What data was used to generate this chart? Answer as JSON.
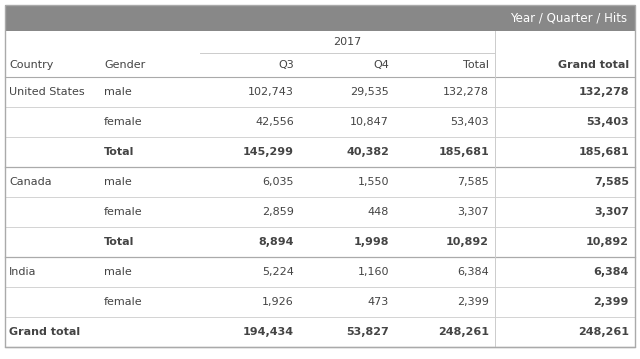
{
  "title_header": "Year / Quarter / Hits",
  "year_label": "2017",
  "col_headers": [
    "Country",
    "Gender",
    "Q3",
    "Q4",
    "Total",
    "Grand total"
  ],
  "rows": [
    {
      "country": "United States",
      "gender": "male",
      "q3": "102,743",
      "q4": "29,535",
      "total": "132,278",
      "grand": "132,278",
      "bold": false
    },
    {
      "country": "",
      "gender": "female",
      "q3": "42,556",
      "q4": "10,847",
      "total": "53,403",
      "grand": "53,403",
      "bold": false
    },
    {
      "country": "",
      "gender": "Total",
      "q3": "145,299",
      "q4": "40,382",
      "total": "185,681",
      "grand": "185,681",
      "bold": true
    },
    {
      "country": "Canada",
      "gender": "male",
      "q3": "6,035",
      "q4": "1,550",
      "total": "7,585",
      "grand": "7,585",
      "bold": false
    },
    {
      "country": "",
      "gender": "female",
      "q3": "2,859",
      "q4": "448",
      "total": "3,307",
      "grand": "3,307",
      "bold": false
    },
    {
      "country": "",
      "gender": "Total",
      "q3": "8,894",
      "q4": "1,998",
      "total": "10,892",
      "grand": "10,892",
      "bold": true
    },
    {
      "country": "India",
      "gender": "male",
      "q3": "5,224",
      "q4": "1,160",
      "total": "6,384",
      "grand": "6,384",
      "bold": false
    },
    {
      "country": "",
      "gender": "female",
      "q3": "1,926",
      "q4": "473",
      "total": "2,399",
      "grand": "2,399",
      "bold": false
    }
  ],
  "grand_total_row": {
    "label": "Grand total",
    "q3": "194,434",
    "q4": "53,827",
    "total": "248,261",
    "grand": "248,261"
  },
  "header_bg": "#888888",
  "header_fg": "#ffffff",
  "row_bg": "#ffffff",
  "border_color": "#cccccc",
  "thick_border_color": "#aaaaaa",
  "text_color": "#444444",
  "grand_col_bg": "#f5f5f5",
  "fontsize": 8.0,
  "header_fontsize": 8.5
}
